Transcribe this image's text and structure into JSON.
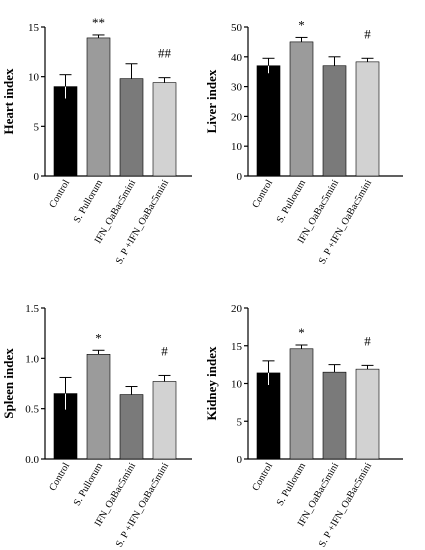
{
  "chart_data": [
    {
      "type": "bar",
      "ylabel": "Heart index",
      "ylim": [
        0,
        15
      ],
      "yticks": [
        0,
        5,
        10,
        15
      ],
      "categories": [
        "Control",
        "S. Pullorum",
        "IFN_OaBac5mini",
        "S. P +IFN_OaBac5mini"
      ],
      "values": [
        9.0,
        13.9,
        9.8,
        9.4
      ],
      "errors": [
        1.2,
        0.3,
        1.5,
        0.5
      ],
      "annotations": [
        "",
        "**",
        "",
        "##"
      ],
      "colors": [
        "#000000",
        "#9b9b9b",
        "#7a7a7a",
        "#d2d2d2"
      ]
    },
    {
      "type": "bar",
      "ylabel": "Liver index",
      "ylim": [
        0,
        50
      ],
      "yticks": [
        0,
        10,
        20,
        30,
        40,
        50
      ],
      "categories": [
        "Control",
        "S. Pullorum",
        "IFN_OaBac5mini",
        "S. P +IFN_OaBac5mini"
      ],
      "values": [
        37.0,
        45.0,
        37.0,
        38.3
      ],
      "errors": [
        2.5,
        1.5,
        3.0,
        1.2
      ],
      "annotations": [
        "",
        "*",
        "",
        "#"
      ],
      "colors": [
        "#000000",
        "#9b9b9b",
        "#7a7a7a",
        "#d2d2d2"
      ]
    },
    {
      "type": "bar",
      "ylabel": "Spleen index",
      "ylim": [
        0,
        1.5
      ],
      "yticks": [
        "0.0",
        "0.5",
        "1.0",
        "1.5"
      ],
      "categories": [
        "Control",
        "S. Pullorum",
        "IFN_OaBac5mini",
        "S. P +IFN_OaBac5mini"
      ],
      "values": [
        0.65,
        1.04,
        0.64,
        0.77
      ],
      "errors": [
        0.16,
        0.04,
        0.08,
        0.06
      ],
      "annotations": [
        "",
        "*",
        "",
        "#"
      ],
      "colors": [
        "#000000",
        "#9b9b9b",
        "#7a7a7a",
        "#d2d2d2"
      ]
    },
    {
      "type": "bar",
      "ylabel": "Kidney index",
      "ylim": [
        0,
        20
      ],
      "yticks": [
        0,
        5,
        10,
        15,
        20
      ],
      "categories": [
        "Control",
        "S. Pullorum",
        "IFN_OaBac5mini",
        "S. P +IFN_OaBac5mini"
      ],
      "values": [
        11.4,
        14.6,
        11.5,
        11.9
      ],
      "errors": [
        1.6,
        0.5,
        1.0,
        0.5
      ],
      "annotations": [
        "",
        "*",
        "",
        "#"
      ],
      "colors": [
        "#000000",
        "#9b9b9b",
        "#7a7a7a",
        "#d2d2d2"
      ]
    }
  ]
}
